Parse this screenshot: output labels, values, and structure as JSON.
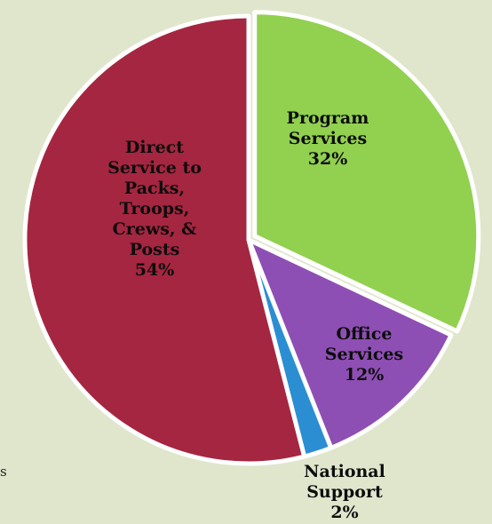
{
  "chart_data": {
    "type": "pie",
    "slices": [
      {
        "label": [
          "Program",
          "Services",
          "32%"
        ],
        "value": 32,
        "color": "#92d050"
      },
      {
        "label": [
          "Office",
          "Services",
          "12%"
        ],
        "value": 12,
        "color": "#8e4fb4"
      },
      {
        "label": [
          "National",
          "Support",
          "2%"
        ],
        "value": 2,
        "color": "#2b8ed3"
      },
      {
        "label": [
          "Direct",
          "Service to",
          "Packs,",
          "Troops,",
          "Crews, &",
          "Posts",
          "54%"
        ],
        "value": 54,
        "color": "#a52640"
      }
    ]
  },
  "page": {
    "background": "#dfe6cc",
    "stray_text": "s"
  }
}
